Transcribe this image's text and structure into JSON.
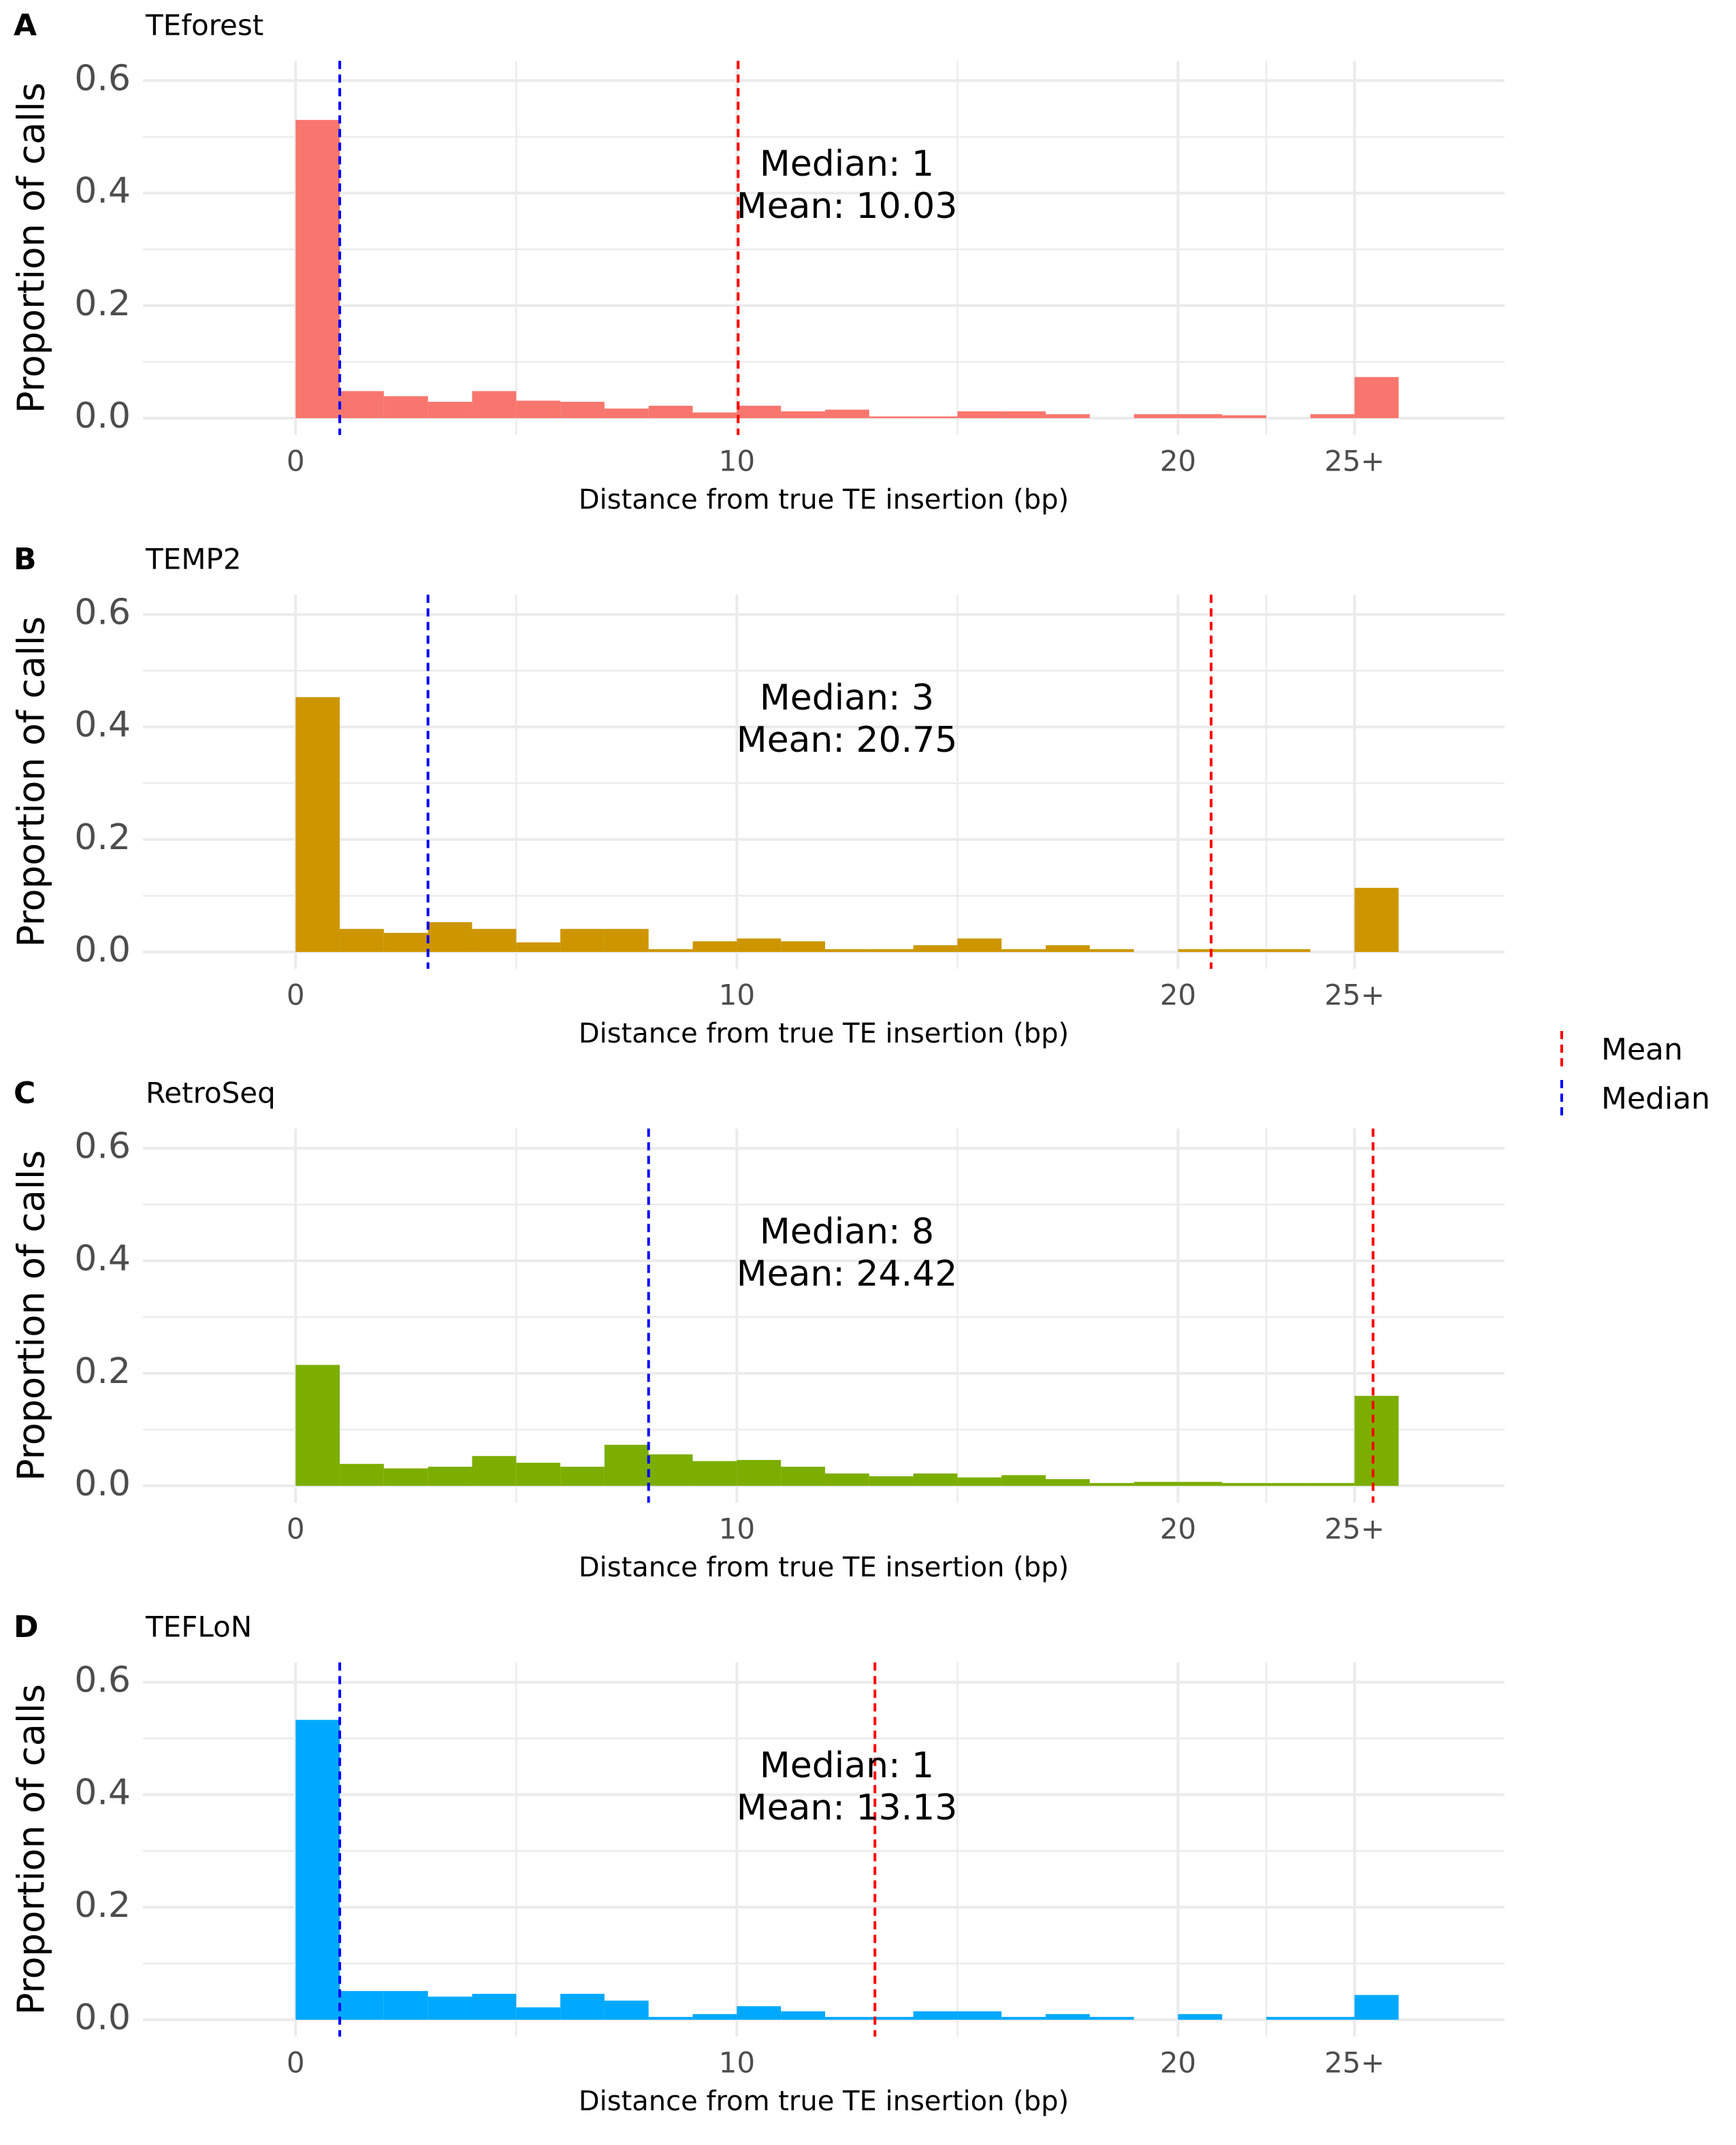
{
  "chart_data": [
    {
      "type": "histogram",
      "letter": "A",
      "title": "TEforest",
      "xlabel": "Distance from true TE insertion (bp)",
      "ylabel": "Proportion of calls",
      "color": "#F8766D",
      "bins": [
        0,
        1,
        2,
        3,
        4,
        5,
        6,
        7,
        8,
        9,
        10,
        11,
        12,
        13,
        14,
        15,
        16,
        17,
        18,
        19,
        20,
        21,
        22,
        23,
        24,
        25
      ],
      "counts": [
        0.53,
        0.048,
        0.039,
        0.029,
        0.048,
        0.031,
        0.029,
        0.017,
        0.022,
        0.01,
        0.022,
        0.012,
        0.015,
        0.003,
        0.003,
        0.012,
        0.012,
        0.007,
        0,
        0.007,
        0.007,
        0.005,
        0,
        0.007,
        0.073
      ],
      "lines": [
        {
          "name": "Mean",
          "value": 10.03,
          "label": "Mean:  10.03",
          "color": "#FF0000"
        },
        {
          "name": "Median",
          "value": 1,
          "label": "Median:  1",
          "color": "#0000FF"
        }
      ],
      "xlim": [
        -3.46,
        27.4
      ],
      "ylim": [
        -0.03,
        0.635
      ],
      "xticks": [
        0,
        10,
        20,
        {
          "value": 24,
          "label": "25+"
        }
      ],
      "xminor": [
        5,
        15,
        22
      ],
      "yticks": [
        {
          "value": 0,
          "label": "0.0"
        },
        0.2,
        0.4,
        0.6
      ],
      "yminor": [
        0.1,
        0.3,
        0.5
      ],
      "grid": true
    },
    {
      "type": "histogram",
      "letter": "B",
      "title": "TEMP2",
      "xlabel": "Distance from true TE insertion (bp)",
      "ylabel": "Proportion of calls",
      "color": "#CD9600",
      "bins": [
        0,
        1,
        2,
        3,
        4,
        5,
        6,
        7,
        8,
        9,
        10,
        11,
        12,
        13,
        14,
        15,
        16,
        17,
        18,
        19,
        20,
        21,
        22,
        23,
        24,
        25
      ],
      "counts": [
        0.453,
        0.041,
        0.034,
        0.053,
        0.041,
        0.017,
        0.041,
        0.041,
        0.005,
        0.019,
        0.024,
        0.019,
        0.005,
        0.005,
        0.012,
        0.024,
        0.005,
        0.012,
        0.005,
        0,
        0.005,
        0.005,
        0.005,
        0,
        0.114
      ],
      "lines": [
        {
          "name": "Mean",
          "value": 20.75,
          "label": "Mean:  20.75",
          "color": "#FF0000"
        },
        {
          "name": "Median",
          "value": 3,
          "label": "Median:  3",
          "color": "#0000FF"
        }
      ],
      "xlim": [
        -3.46,
        27.4
      ],
      "ylim": [
        -0.03,
        0.635
      ],
      "xticks": [
        0,
        10,
        20,
        {
          "value": 24,
          "label": "25+"
        }
      ],
      "xminor": [
        5,
        15,
        22
      ],
      "yticks": [
        {
          "value": 0,
          "label": "0.0"
        },
        0.2,
        0.4,
        0.6
      ],
      "yminor": [
        0.1,
        0.3,
        0.5
      ],
      "grid": true
    },
    {
      "type": "histogram",
      "letter": "C",
      "title": "RetroSeq",
      "xlabel": "Distance from true TE insertion (bp)",
      "ylabel": "Proportion of calls",
      "color": "#7CAE00",
      "bins": [
        0,
        1,
        2,
        3,
        4,
        5,
        6,
        7,
        8,
        9,
        10,
        11,
        12,
        13,
        14,
        15,
        16,
        17,
        18,
        19,
        20,
        21,
        22,
        23,
        24,
        25
      ],
      "counts": [
        0.215,
        0.039,
        0.031,
        0.034,
        0.053,
        0.041,
        0.034,
        0.073,
        0.056,
        0.044,
        0.046,
        0.034,
        0.022,
        0.017,
        0.022,
        0.015,
        0.019,
        0.012,
        0.005,
        0.007,
        0.007,
        0.005,
        0.005,
        0.005,
        0.16
      ],
      "lines": [
        {
          "name": "Mean",
          "value": 24.42,
          "label": "Mean:  24.42",
          "color": "#FF0000"
        },
        {
          "name": "Median",
          "value": 8,
          "label": "Median:  8",
          "color": "#0000FF"
        }
      ],
      "xlim": [
        -3.46,
        27.4
      ],
      "ylim": [
        -0.03,
        0.635
      ],
      "xticks": [
        0,
        10,
        20,
        {
          "value": 24,
          "label": "25+"
        }
      ],
      "xminor": [
        5,
        15,
        22
      ],
      "yticks": [
        {
          "value": 0,
          "label": "0.0"
        },
        0.2,
        0.4,
        0.6
      ],
      "yminor": [
        0.1,
        0.3,
        0.5
      ],
      "grid": true
    },
    {
      "type": "histogram",
      "letter": "D",
      "title": "TEFLoN",
      "xlabel": "Distance from true TE insertion (bp)",
      "ylabel": "Proportion of calls",
      "color": "#00A9FF",
      "bins": [
        0,
        1,
        2,
        3,
        4,
        5,
        6,
        7,
        8,
        9,
        10,
        11,
        12,
        13,
        14,
        15,
        16,
        17,
        18,
        19,
        20,
        21,
        22,
        23,
        24,
        25
      ],
      "counts": [
        0.533,
        0.051,
        0.051,
        0.041,
        0.046,
        0.022,
        0.046,
        0.034,
        0.005,
        0.01,
        0.024,
        0.015,
        0.005,
        0.005,
        0.015,
        0.015,
        0.005,
        0.01,
        0.005,
        0,
        0.01,
        0,
        0.005,
        0.005,
        0.044
      ],
      "lines": [
        {
          "name": "Mean",
          "value": 13.13,
          "label": "Mean:  13.13",
          "color": "#FF0000"
        },
        {
          "name": "Median",
          "value": 1,
          "label": "Median:  1",
          "color": "#0000FF"
        }
      ],
      "xlim": [
        -3.46,
        27.4
      ],
      "ylim": [
        -0.03,
        0.635
      ],
      "xticks": [
        0,
        10,
        20,
        {
          "value": 24,
          "label": "25+"
        }
      ],
      "xminor": [
        5,
        15,
        22
      ],
      "yticks": [
        {
          "value": 0,
          "label": "0.0"
        },
        0.2,
        0.4,
        0.6
      ],
      "yminor": [
        0.1,
        0.3,
        0.5
      ],
      "grid": true
    }
  ]
}
